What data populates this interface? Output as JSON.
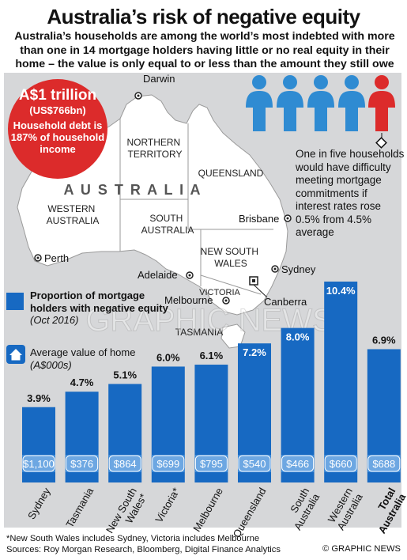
{
  "title": "Australia’s risk of negative equity",
  "subtitle": "Australia’s households are among the world’s most indebted with more than one in 14 mortgage holders having little or no real equity in their home – the value is only equal to or less than the amount they still owe",
  "debt": {
    "amount": "A$1 trillion",
    "usd": "(US$766bn)",
    "text": "Household debt is 187% of household income"
  },
  "one_in_five": "One in five households would have difficulty meeting mortgage commitments if interest rates rose 0.5% from 4.5% average",
  "map": {
    "country": "A U S T R A L I A",
    "regions": [
      "NORTHERN TERRITORY",
      "QUEENSLAND",
      "WESTERN AUSTRALIA",
      "SOUTH AUSTRALIA",
      "NEW SOUTH WALES",
      "VICTORIA",
      "TASMANIA"
    ],
    "cities": [
      "Darwin",
      "Brisbane",
      "Perth",
      "Adelaide",
      "Sydney",
      "Canberra",
      "Melbourne"
    ]
  },
  "legend": {
    "proportion": "Proportion of mortgage holders with negative equity",
    "proportion_date": "(Oct 2016)",
    "value_label": "Average value of home",
    "value_unit": "(A$000s)"
  },
  "colors": {
    "bar": "#1769c2",
    "bar_light": "#3d8ad8",
    "person_blue": "#2f8bd2",
    "person_red": "#dc2b2b",
    "panel": "#d6d7d9"
  },
  "chart_data": {
    "type": "bar",
    "categories": [
      "Sydney",
      "Tasmania",
      "New South Wales*",
      "Victoria*",
      "Melbourne",
      "Queensland",
      "South Australia",
      "Western Australia",
      "Total Australia"
    ],
    "values": [
      3.9,
      4.7,
      5.1,
      6.0,
      6.1,
      7.2,
      8.0,
      10.4,
      6.9
    ],
    "value_labels": [
      "3.9%",
      "4.7%",
      "5.1%",
      "6.0%",
      "6.1%",
      "7.2%",
      "8.0%",
      "10.4%",
      "6.9%"
    ],
    "home_values": [
      "$1,100",
      "$376",
      "$864",
      "$699",
      "$795",
      "$540",
      "$466",
      "$660",
      "$688"
    ],
    "ylabel": "",
    "ylim": [
      0,
      10.4
    ],
    "grid": false
  },
  "footnote": "*New South Wales includes Sydney, Victoria includes Melbourne",
  "sources": "Sources: Roy Morgan Research, Bloomberg, Digital Finance Analytics",
  "credit": "© GRAPHIC NEWS",
  "watermark": "GRAPHIC NEWS"
}
